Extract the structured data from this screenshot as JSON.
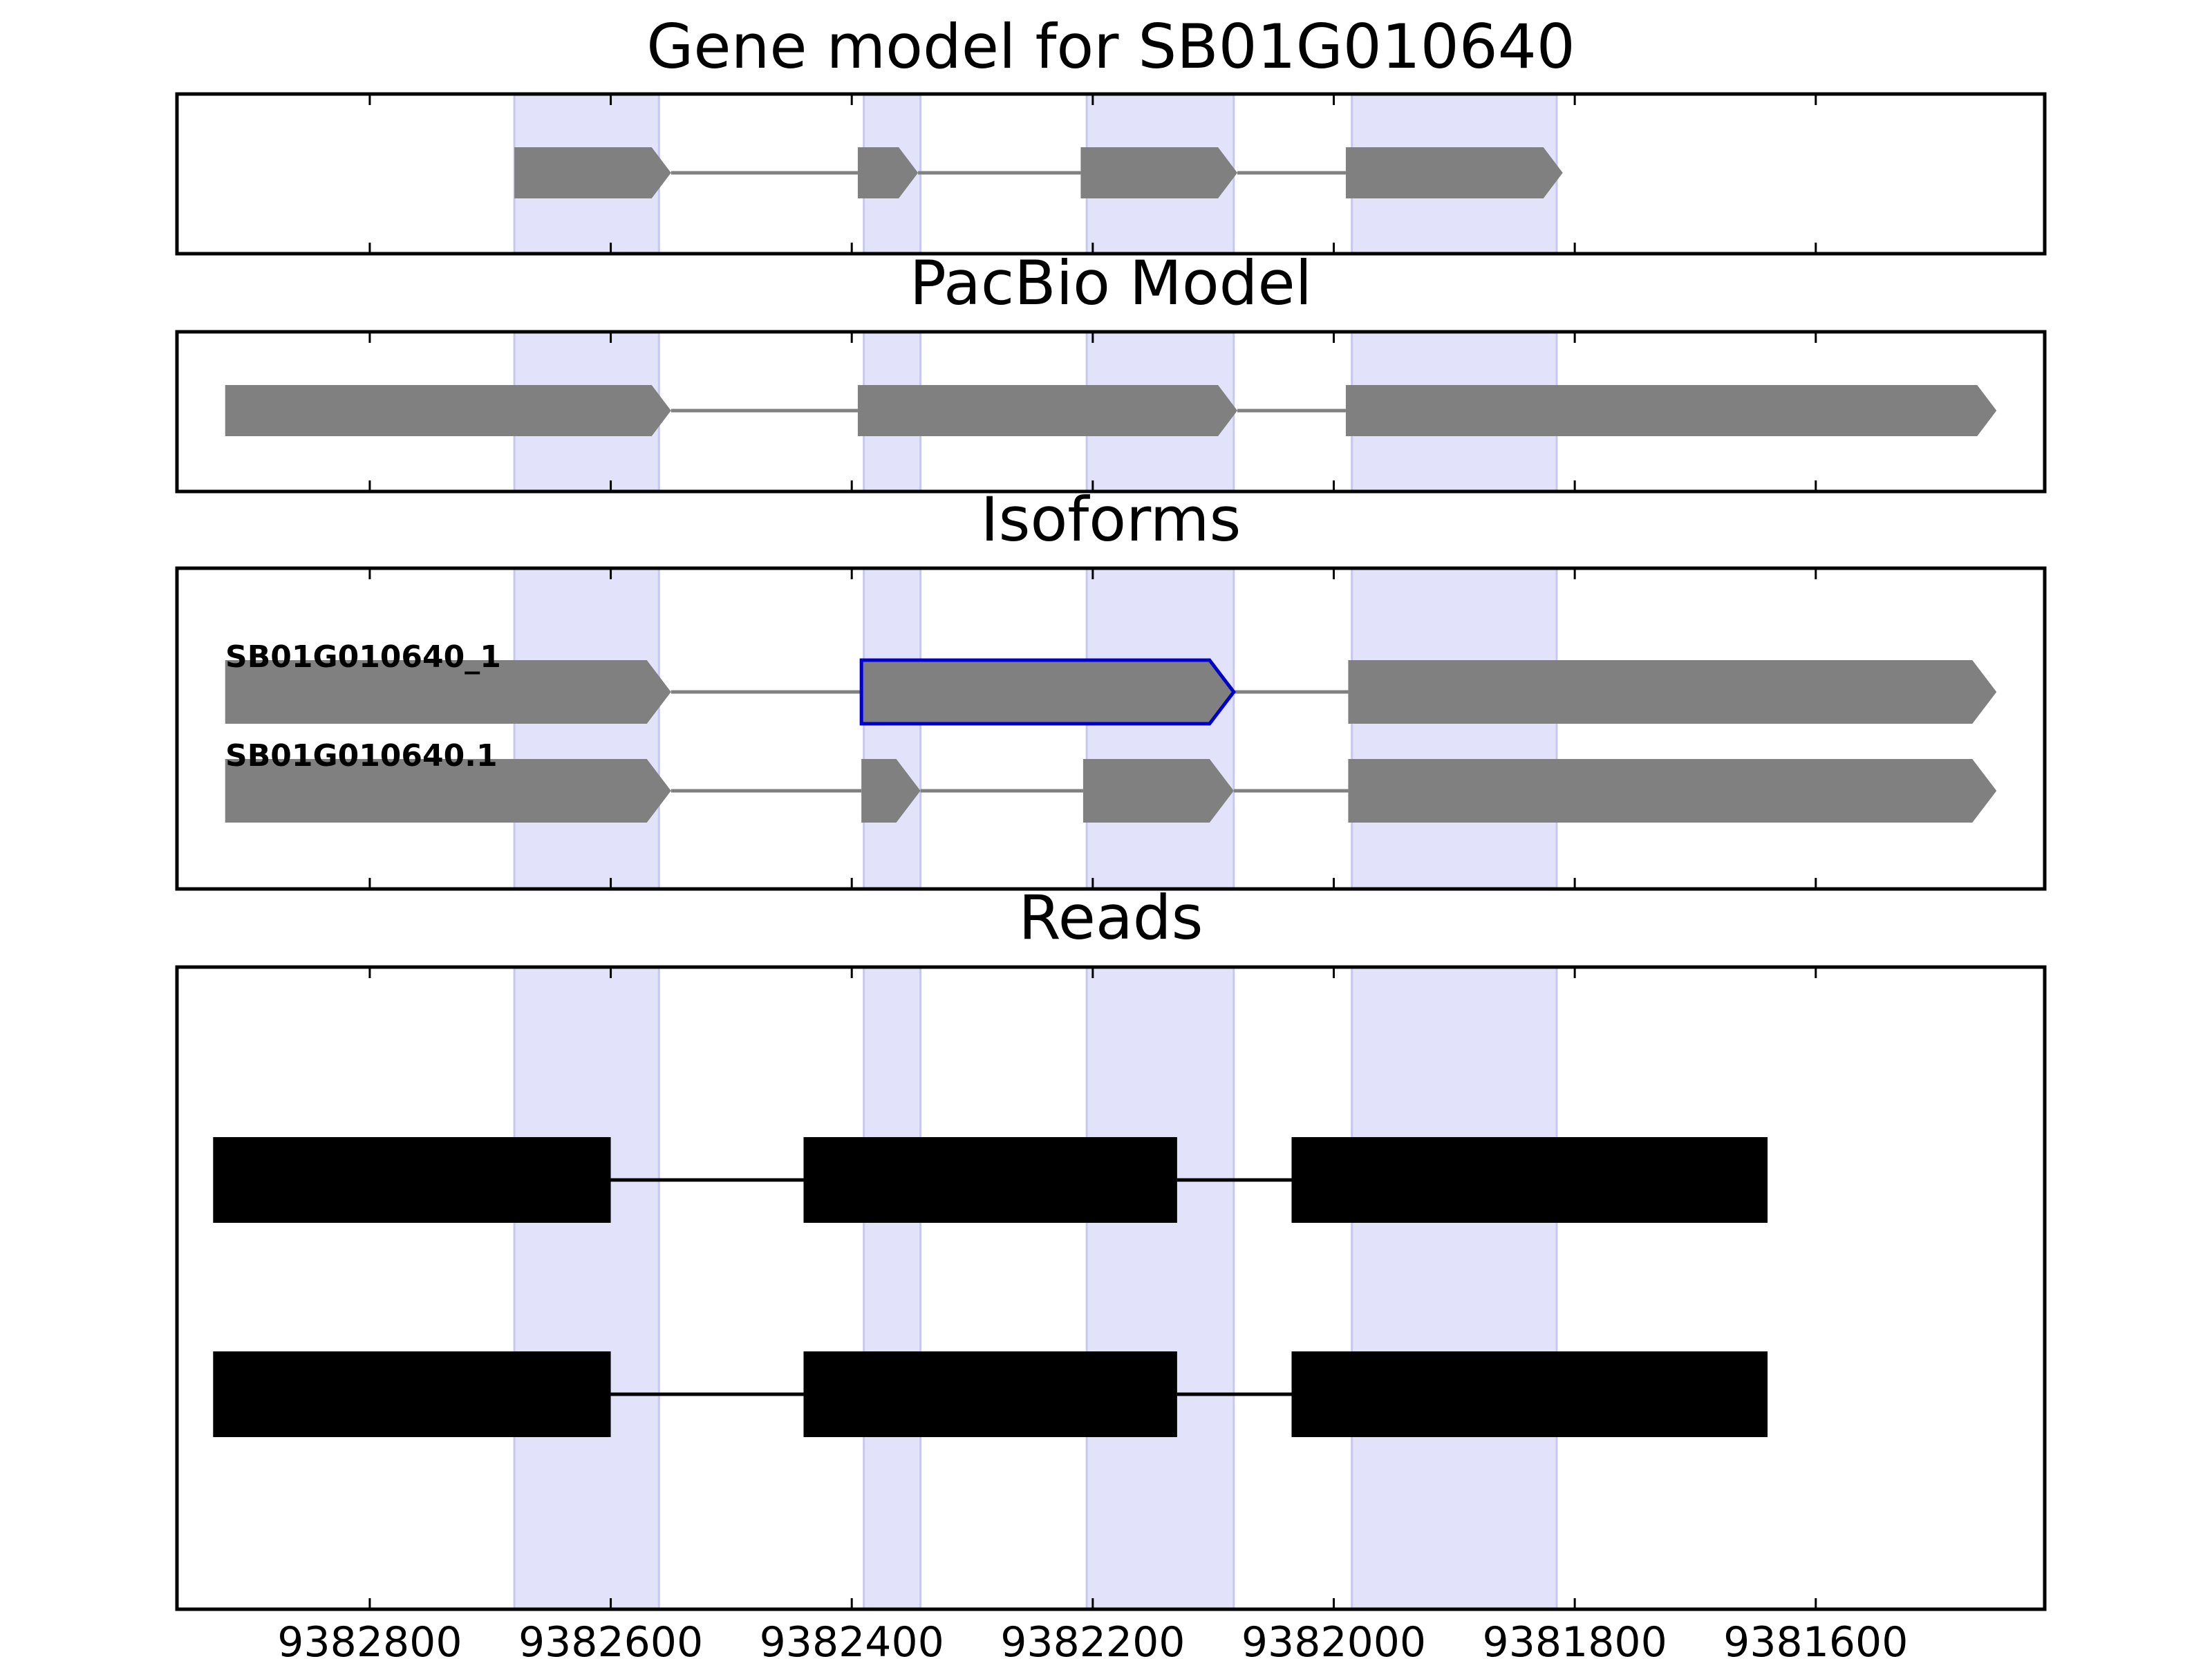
{
  "chart_data": {
    "type": "gene-track",
    "xaxis": {
      "direction": "reversed",
      "range": [
        9382960,
        9381410
      ],
      "ticks": [
        9382800,
        9382600,
        9382400,
        9382200,
        9382000,
        9381800,
        9381600
      ],
      "tick_labels": [
        "9382800",
        "9382600",
        "9382400",
        "9382200",
        "9382000",
        "9381800",
        "9381600"
      ]
    },
    "highlight_color": "#e2e2fb",
    "highlight_regions": [
      [
        9382680,
        9382560
      ],
      [
        9382390,
        9382343
      ],
      [
        9382205,
        9382083
      ],
      [
        9381985,
        9381815
      ]
    ],
    "panels": [
      {
        "title": "Gene model for SB01G010640",
        "strand": "-",
        "tracks": [
          {
            "label": "",
            "color": "#808080",
            "exons": [
              [
                9382680,
                9382550
              ],
              [
                9382395,
                9382345
              ],
              [
                9382210,
                9382080
              ],
              [
                9381990,
                9381810
              ]
            ]
          }
        ]
      },
      {
        "title": "PacBio Model",
        "strand": "-",
        "tracks": [
          {
            "label": "",
            "color": "#808080",
            "exons": [
              [
                9382920,
                9382550
              ],
              [
                9382395,
                9382080
              ],
              [
                9381990,
                9381450
              ]
            ]
          }
        ]
      },
      {
        "title": "Isoforms",
        "strand": "-",
        "tracks": [
          {
            "label": "SB01G010640_1",
            "color": "#808080",
            "highlight_exon": 1,
            "highlight_stroke": "#0000cc",
            "exons": [
              [
                9382920,
                9382550
              ],
              [
                9382392,
                9382083
              ],
              [
                9381988,
                9381450
              ]
            ]
          },
          {
            "label": "SB01G010640.1",
            "color": "#808080",
            "exons": [
              [
                9382920,
                9382550
              ],
              [
                9382392,
                9382343
              ],
              [
                9382208,
                9382083
              ],
              [
                9381988,
                9381450
              ]
            ]
          }
        ]
      },
      {
        "title": "Reads",
        "strand": "none",
        "tracks": [
          {
            "label": "",
            "color": "#000000",
            "exons": [
              [
                9382930,
                9382600
              ],
              [
                9382440,
                9382130
              ],
              [
                9382035,
                9381640
              ]
            ]
          },
          {
            "label": "",
            "color": "#000000",
            "exons": [
              [
                9382930,
                9382600
              ],
              [
                9382440,
                9382130
              ],
              [
                9382035,
                9381640
              ]
            ]
          }
        ]
      }
    ]
  }
}
